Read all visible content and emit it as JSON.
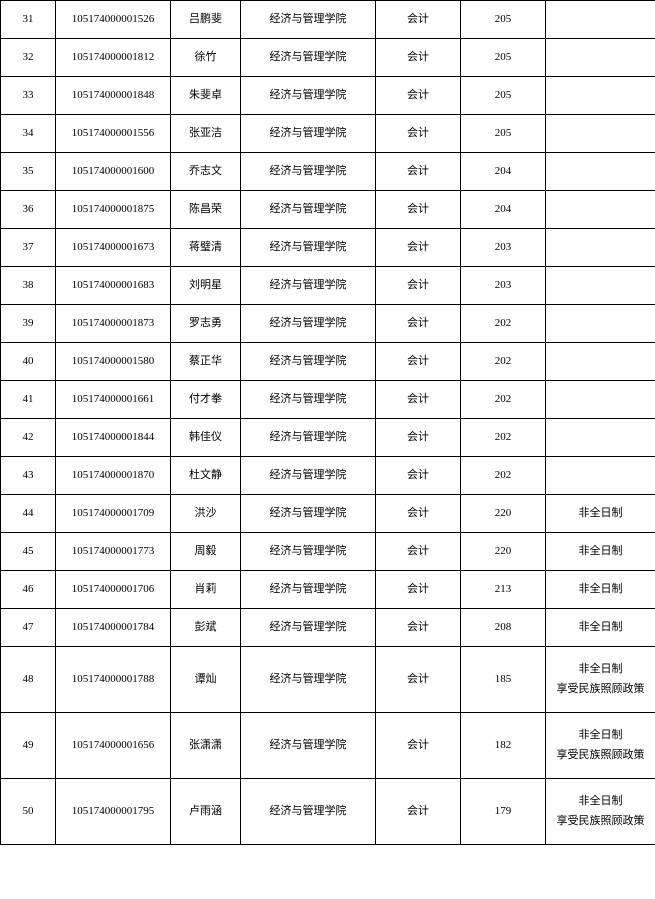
{
  "table": {
    "columns": [
      "idx",
      "id",
      "name",
      "dept",
      "major",
      "score",
      "note"
    ],
    "rowHeightNormal": 38,
    "rowHeightTall": 66,
    "rows": [
      {
        "idx": "31",
        "id": "105174000001526",
        "name": "吕鹏斐",
        "dept": "经济与管理学院",
        "major": "会计",
        "score": "205",
        "note": "",
        "tall": false
      },
      {
        "idx": "32",
        "id": "105174000001812",
        "name": "徐竹",
        "dept": "经济与管理学院",
        "major": "会计",
        "score": "205",
        "note": "",
        "tall": false
      },
      {
        "idx": "33",
        "id": "105174000001848",
        "name": "朱斐卓",
        "dept": "经济与管理学院",
        "major": "会计",
        "score": "205",
        "note": "",
        "tall": false
      },
      {
        "idx": "34",
        "id": "105174000001556",
        "name": "张亚洁",
        "dept": "经济与管理学院",
        "major": "会计",
        "score": "205",
        "note": "",
        "tall": false
      },
      {
        "idx": "35",
        "id": "105174000001600",
        "name": "乔志文",
        "dept": "经济与管理学院",
        "major": "会计",
        "score": "204",
        "note": "",
        "tall": false
      },
      {
        "idx": "36",
        "id": "105174000001875",
        "name": "陈昌荣",
        "dept": "经济与管理学院",
        "major": "会计",
        "score": "204",
        "note": "",
        "tall": false
      },
      {
        "idx": "37",
        "id": "105174000001673",
        "name": "蒋璧清",
        "dept": "经济与管理学院",
        "major": "会计",
        "score": "203",
        "note": "",
        "tall": false
      },
      {
        "idx": "38",
        "id": "105174000001683",
        "name": "刘明星",
        "dept": "经济与管理学院",
        "major": "会计",
        "score": "203",
        "note": "",
        "tall": false
      },
      {
        "idx": "39",
        "id": "105174000001873",
        "name": "罗志勇",
        "dept": "经济与管理学院",
        "major": "会计",
        "score": "202",
        "note": "",
        "tall": false
      },
      {
        "idx": "40",
        "id": "105174000001580",
        "name": "蔡正华",
        "dept": "经济与管理学院",
        "major": "会计",
        "score": "202",
        "note": "",
        "tall": false
      },
      {
        "idx": "41",
        "id": "105174000001661",
        "name": "付才拳",
        "dept": "经济与管理学院",
        "major": "会计",
        "score": "202",
        "note": "",
        "tall": false
      },
      {
        "idx": "42",
        "id": "105174000001844",
        "name": "韩佳仪",
        "dept": "经济与管理学院",
        "major": "会计",
        "score": "202",
        "note": "",
        "tall": false
      },
      {
        "idx": "43",
        "id": "105174000001870",
        "name": "杜文静",
        "dept": "经济与管理学院",
        "major": "会计",
        "score": "202",
        "note": "",
        "tall": false
      },
      {
        "idx": "44",
        "id": "105174000001709",
        "name": "洪沙",
        "dept": "经济与管理学院",
        "major": "会计",
        "score": "220",
        "note": "非全日制",
        "tall": false
      },
      {
        "idx": "45",
        "id": "105174000001773",
        "name": "周毅",
        "dept": "经济与管理学院",
        "major": "会计",
        "score": "220",
        "note": "非全日制",
        "tall": false
      },
      {
        "idx": "46",
        "id": "105174000001706",
        "name": "肖莉",
        "dept": "经济与管理学院",
        "major": "会计",
        "score": "213",
        "note": "非全日制",
        "tall": false
      },
      {
        "idx": "47",
        "id": "105174000001784",
        "name": "彭斌",
        "dept": "经济与管理学院",
        "major": "会计",
        "score": "208",
        "note": "非全日制",
        "tall": false
      },
      {
        "idx": "48",
        "id": "105174000001788",
        "name": "谭灿",
        "dept": "经济与管理学院",
        "major": "会计",
        "score": "185",
        "note": "非全日制|享受民族照顾政策",
        "tall": true
      },
      {
        "idx": "49",
        "id": "105174000001656",
        "name": "张潇潇",
        "dept": "经济与管理学院",
        "major": "会计",
        "score": "182",
        "note": "非全日制|享受民族照顾政策",
        "tall": true
      },
      {
        "idx": "50",
        "id": "105174000001795",
        "name": "卢雨涵",
        "dept": "经济与管理学院",
        "major": "会计",
        "score": "179",
        "note": "非全日制|享受民族照顾政策",
        "tall": true
      }
    ]
  }
}
